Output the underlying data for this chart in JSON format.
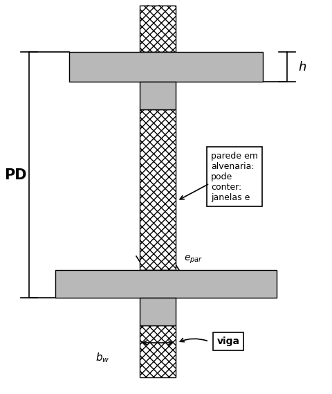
{
  "fig_width": 4.8,
  "fig_height": 5.69,
  "dpi": 100,
  "bg_color": "#ffffff",
  "outline_color": "#000000",
  "gray_color": "#b8b8b8",
  "label_PD": "PD",
  "label_h": "h",
  "label_viga": "viga",
  "label_parede": "parede em\nalvenaria:\npode\nconter:\njanelas e",
  "box_facecolor": "#ffffff",
  "box_edgecolor": "#000000"
}
